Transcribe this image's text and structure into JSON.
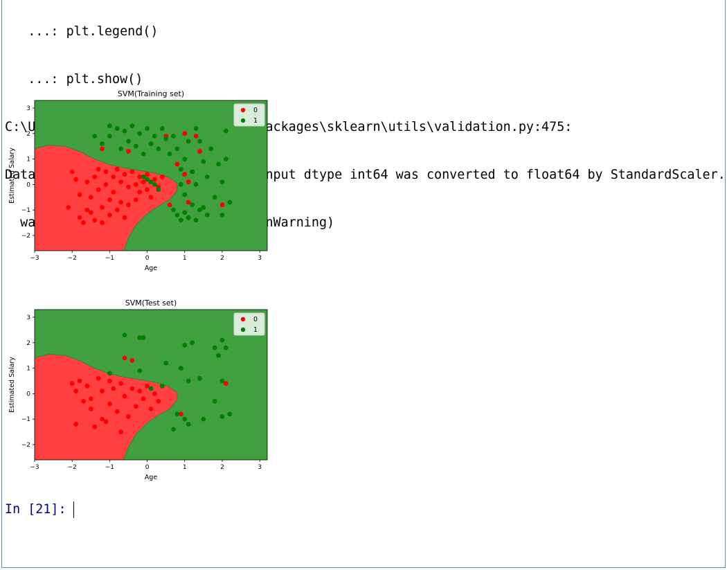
{
  "console": {
    "lines": [
      "   ...: plt.legend()",
      "   ...: plt.show()",
      "C:\\Users\\ASUS\\Anaconda3\\lib\\site-packages\\sklearn\\utils\\validation.py:475:",
      "DataConversionWarning: Data with input dtype int64 was converted to float64 by StandardScaler.",
      "  warnings.warn(msg, DataConversionWarning)"
    ]
  },
  "prompt": {
    "label": "In [21]:"
  },
  "colors": {
    "class0": "#ff0000",
    "class1": "#008000",
    "region0": "#ff4040",
    "region1": "#40a040",
    "prompt": "#000080"
  },
  "chart_data": [
    {
      "type": "scatter",
      "title": "SVM(Training set)",
      "xlabel": "Age",
      "ylabel": "Estimated Salary",
      "xlim": [
        -3,
        3.2
      ],
      "ylim": [
        -2.6,
        3.3
      ],
      "xticks": [
        -3,
        -2,
        -1,
        0,
        1,
        2,
        3
      ],
      "yticks": [
        -2,
        -1,
        0,
        1,
        2,
        3
      ],
      "legend": {
        "position": "top-right",
        "entries": [
          "0",
          "1"
        ]
      },
      "series": [
        {
          "name": "0",
          "color": "#ff0000",
          "points": [
            [
              -2,
              0.5
            ],
            [
              -1.9,
              0.2
            ],
            [
              -1.8,
              -0.4
            ],
            [
              -1.8,
              -1.3
            ],
            [
              -1.7,
              -1.5
            ],
            [
              -1.6,
              0.1
            ],
            [
              -1.5,
              -0.5
            ],
            [
              -1.5,
              -1.1
            ],
            [
              -1.4,
              0.3
            ],
            [
              -1.4,
              -1.4
            ],
            [
              -1.3,
              0.6
            ],
            [
              -1.3,
              -0.2
            ],
            [
              -1.2,
              -0.9
            ],
            [
              -1.2,
              -1.5
            ],
            [
              -1.1,
              0.5
            ],
            [
              -1.1,
              0.0
            ],
            [
              -1.0,
              -0.6
            ],
            [
              -1.0,
              -1.2
            ],
            [
              -0.9,
              0.3
            ],
            [
              -0.9,
              -0.3
            ],
            [
              -0.8,
              0.6
            ],
            [
              -0.8,
              -1.0
            ],
            [
              -0.7,
              0.1
            ],
            [
              -0.7,
              -0.7
            ],
            [
              -0.6,
              0.4
            ],
            [
              -0.6,
              -1.3
            ],
            [
              -0.5,
              -0.1
            ],
            [
              -0.5,
              -0.8
            ],
            [
              -0.4,
              0.5
            ],
            [
              -0.3,
              0.0
            ],
            [
              -0.3,
              -0.6
            ],
            [
              -0.2,
              0.3
            ],
            [
              -0.2,
              -0.3
            ],
            [
              -0.1,
              0.1
            ],
            [
              0.0,
              -0.2
            ],
            [
              0.0,
              0.4
            ],
            [
              0.1,
              -0.5
            ],
            [
              0.2,
              0.2
            ],
            [
              0.3,
              -0.1
            ],
            [
              0.4,
              0.3
            ],
            [
              0.6,
              -0.8
            ],
            [
              0.8,
              0.8
            ],
            [
              1.0,
              0.4
            ],
            [
              1.1,
              0.1
            ],
            [
              1.1,
              -0.7
            ],
            [
              1.4,
              1.3
            ],
            [
              1.3,
              1.9
            ],
            [
              1.0,
              2.0
            ],
            [
              0.5,
              1.9
            ],
            [
              -1.2,
              1.4
            ],
            [
              -0.5,
              1.3
            ],
            [
              2.0,
              -0.8
            ],
            [
              -2.1,
              -0.9
            ],
            [
              -1.6,
              -1.0
            ]
          ]
        },
        {
          "name": "1",
          "color": "#008000",
          "points": [
            [
              -1.4,
              1.9
            ],
            [
              -1.2,
              1.6
            ],
            [
              -1.0,
              1.9
            ],
            [
              -1.0,
              2.3
            ],
            [
              -0.8,
              2.2
            ],
            [
              -0.7,
              1.4
            ],
            [
              -0.6,
              2.1
            ],
            [
              -0.5,
              1.7
            ],
            [
              -0.4,
              2.3
            ],
            [
              -0.3,
              1.5
            ],
            [
              -0.2,
              2.0
            ],
            [
              -0.1,
              1.2
            ],
            [
              0.0,
              2.2
            ],
            [
              0.1,
              1.6
            ],
            [
              0.2,
              1.9
            ],
            [
              0.3,
              1.4
            ],
            [
              0.4,
              2.2
            ],
            [
              0.5,
              1.8
            ],
            [
              0.6,
              1.2
            ],
            [
              0.7,
              1.9
            ],
            [
              0.8,
              1.4
            ],
            [
              0.9,
              0.6
            ],
            [
              1.0,
              1.0
            ],
            [
              1.1,
              1.7
            ],
            [
              1.2,
              0.5
            ],
            [
              1.3,
              2.2
            ],
            [
              1.4,
              1.7
            ],
            [
              1.5,
              0.9
            ],
            [
              1.5,
              -0.9
            ],
            [
              1.6,
              0.3
            ],
            [
              1.7,
              1.4
            ],
            [
              1.8,
              -0.5
            ],
            [
              1.9,
              0.8
            ],
            [
              2.0,
              -1.2
            ],
            [
              2.0,
              0.1
            ],
            [
              2.1,
              2.1
            ],
            [
              2.1,
              1.0
            ],
            [
              2.2,
              -0.7
            ],
            [
              0.7,
              -1.0
            ],
            [
              0.8,
              -1.2
            ],
            [
              0.9,
              -1.4
            ],
            [
              1.0,
              -1.1
            ],
            [
              1.1,
              -1.3
            ],
            [
              1.2,
              -0.8
            ],
            [
              1.3,
              -1.4
            ],
            [
              1.4,
              -1.0
            ],
            [
              0.1,
              0.1
            ],
            [
              0.2,
              0.0
            ],
            [
              0.3,
              -0.2
            ],
            [
              0.0,
              0.2
            ],
            [
              -0.1,
              0.3
            ],
            [
              0.9,
              0.0
            ],
            [
              1.0,
              -0.4
            ],
            [
              1.3,
              0.0
            ],
            [
              1.6,
              -1.2
            ]
          ]
        }
      ],
      "regions": {
        "0": "#ff4040",
        "1": "#40a040"
      }
    },
    {
      "type": "scatter",
      "title": "SVM(Test set)",
      "xlabel": "Age",
      "ylabel": "Estimated Salary",
      "xlim": [
        -3,
        3.2
      ],
      "ylim": [
        -2.6,
        3.3
      ],
      "xticks": [
        -3,
        -2,
        -1,
        0,
        1,
        2,
        3
      ],
      "yticks": [
        -2,
        -1,
        0,
        1,
        2,
        3
      ],
      "legend": {
        "position": "top-right",
        "entries": [
          "0",
          "1"
        ]
      },
      "series": [
        {
          "name": "0",
          "color": "#ff0000",
          "points": [
            [
              -2,
              0.4
            ],
            [
              -1.9,
              0.1
            ],
            [
              -1.9,
              -1.2
            ],
            [
              -1.8,
              0.5
            ],
            [
              -1.7,
              -0.3
            ],
            [
              -1.6,
              0.3
            ],
            [
              -1.5,
              -0.2
            ],
            [
              -1.5,
              -0.6
            ],
            [
              -1.4,
              -1.3
            ],
            [
              -1.3,
              0.6
            ],
            [
              -1.2,
              0.1
            ],
            [
              -1.2,
              -1.0
            ],
            [
              -1.1,
              -1.1
            ],
            [
              -1.0,
              0.5
            ],
            [
              -1.0,
              -0.4
            ],
            [
              -0.9,
              0.2
            ],
            [
              -0.8,
              -0.7
            ],
            [
              -0.7,
              0.4
            ],
            [
              -0.7,
              -1.5
            ],
            [
              -0.6,
              -0.1
            ],
            [
              -0.5,
              -0.9
            ],
            [
              -0.4,
              0.2
            ],
            [
              -0.3,
              -0.5
            ],
            [
              -0.2,
              0.1
            ],
            [
              -0.1,
              -0.2
            ],
            [
              0.0,
              0.3
            ],
            [
              0.1,
              -0.6
            ],
            [
              0.2,
              0.0
            ],
            [
              0.3,
              -0.3
            ],
            [
              -0.6,
              1.4
            ],
            [
              -0.4,
              1.3
            ],
            [
              0.9,
              -0.8
            ],
            [
              2.1,
              0.4
            ]
          ]
        },
        {
          "name": "1",
          "color": "#008000",
          "points": [
            [
              -0.6,
              2.3
            ],
            [
              -0.2,
              2.2
            ],
            [
              -0.1,
              2.2
            ],
            [
              -0.2,
              0.9
            ],
            [
              0.5,
              1.2
            ],
            [
              0.9,
              1.0
            ],
            [
              1.0,
              1.9
            ],
            [
              1.1,
              0.5
            ],
            [
              1.2,
              2.0
            ],
            [
              1.4,
              0.6
            ],
            [
              1.8,
              1.8
            ],
            [
              1.9,
              1.5
            ],
            [
              2.0,
              2.1
            ],
            [
              2.0,
              0.5
            ],
            [
              2.1,
              1.8
            ],
            [
              2.2,
              -0.8
            ],
            [
              2.0,
              -0.9
            ],
            [
              1.5,
              -1.0
            ],
            [
              1.1,
              -1.2
            ],
            [
              1.0,
              -1.0
            ],
            [
              0.7,
              -1.4
            ],
            [
              0.8,
              -0.8
            ],
            [
              1.8,
              -0.3
            ],
            [
              0.1,
              0.2
            ],
            [
              -1.0,
              0.8
            ],
            [
              0.4,
              0.3
            ]
          ]
        }
      ],
      "regions": {
        "0": "#ff4040",
        "1": "#40a040"
      }
    }
  ]
}
